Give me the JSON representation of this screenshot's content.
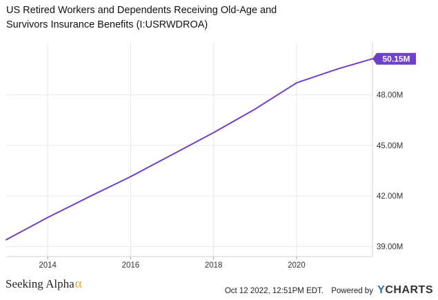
{
  "chart_data": {
    "type": "line",
    "title": "US Retired Workers and Dependents Receiving Old-Age and Survivors Insurance Benefits (I:USRWDROA)",
    "x": [
      2013,
      2014,
      2015,
      2016,
      2017,
      2018,
      2019,
      2020,
      2021,
      2021.83
    ],
    "series": [
      {
        "name": "",
        "values": [
          39.4,
          40.72,
          41.95,
          43.15,
          44.45,
          45.76,
          47.16,
          48.72,
          49.55,
          50.15
        ]
      }
    ],
    "xticks": [
      "2014",
      "2016",
      "2018",
      "2020"
    ],
    "xtick_values": [
      2014,
      2016,
      2018,
      2020
    ],
    "yticks": [
      "39.00M",
      "42.00M",
      "45.00M",
      "48.00M"
    ],
    "ytick_values": [
      39,
      42,
      45,
      48
    ],
    "xlim": [
      2013,
      2021.83
    ],
    "ylim": [
      38.4,
      51.1
    ],
    "last_value_label": "50.15M",
    "line_color": "#6f3fc8",
    "xlabel": "",
    "ylabel": "",
    "grid": true
  },
  "footer": {
    "brand": "Seeking Alpha",
    "brand_symbol": "α",
    "timestamp": "Oct 12 2022, 12:51PM EDT.",
    "powered_by": "Powered by",
    "ycharts_y": "Y",
    "ycharts_rest": "CHARTS"
  }
}
